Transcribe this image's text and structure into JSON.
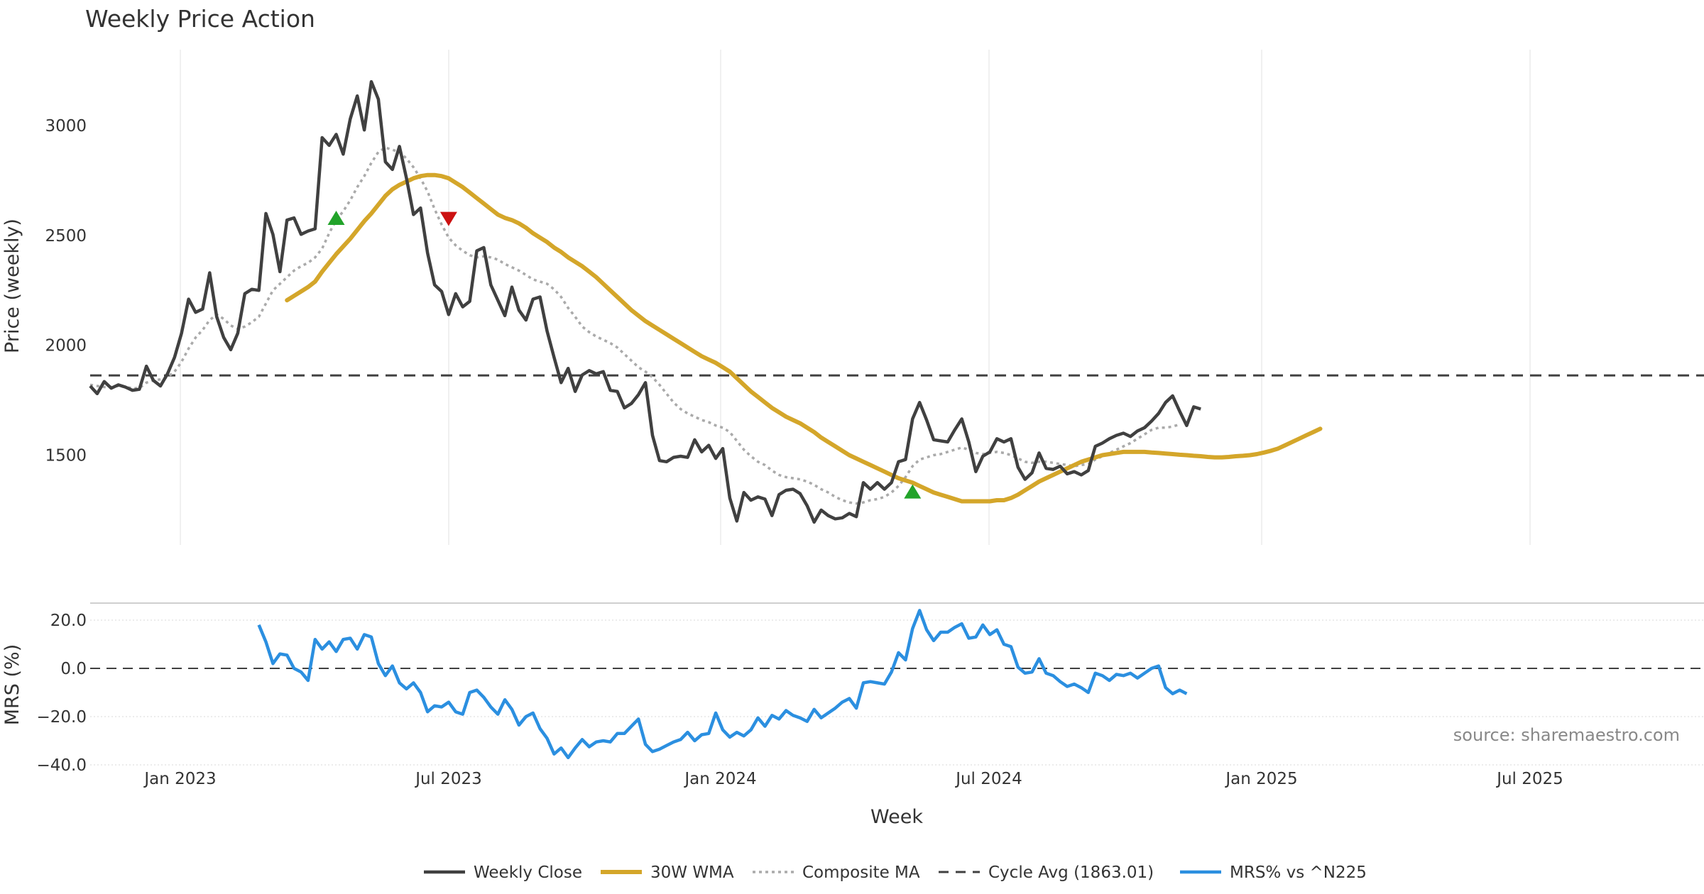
{
  "chart_data": {
    "type": "line",
    "title": "Weekly Price Action",
    "xlabel": "Week",
    "source": "source: sharemaestro.com",
    "colors": {
      "close": "#404040",
      "wma": "#d4a62a",
      "composite": "#aaaaaa",
      "cycle": "#404040",
      "mrs": "#2b8fe0",
      "buy": "#22a32a",
      "sell": "#cc1111"
    },
    "x_ticks": [
      "Jan 2023",
      "Jul 2023",
      "Jan 2024",
      "Jul 2024",
      "Jan 2025",
      "Jul 2025"
    ],
    "price_panel": {
      "ylabel": "Price (weekly)",
      "yticks": [
        "1500",
        "2000",
        "2500",
        "3000"
      ],
      "ylim": [
        1070,
        3290
      ],
      "cycle_avg": 1863.01,
      "weekly_close": [
        1815,
        1780,
        1835,
        1805,
        1820,
        1810,
        1795,
        1800,
        1905,
        1840,
        1815,
        1870,
        1945,
        2055,
        2210,
        2150,
        2165,
        2330,
        2130,
        2035,
        1980,
        2055,
        2235,
        2255,
        2250,
        2600,
        2505,
        2335,
        2570,
        2580,
        2505,
        2520,
        2530,
        2945,
        2910,
        2960,
        2870,
        3030,
        3135,
        2980,
        3200,
        3120,
        2835,
        2800,
        2905,
        2760,
        2595,
        2625,
        2420,
        2275,
        2245,
        2140,
        2235,
        2175,
        2200,
        2430,
        2445,
        2275,
        2205,
        2135,
        2265,
        2160,
        2115,
        2210,
        2220,
        2065,
        1945,
        1830,
        1895,
        1790,
        1865,
        1885,
        1870,
        1880,
        1795,
        1790,
        1715,
        1735,
        1775,
        1830,
        1590,
        1475,
        1470,
        1490,
        1495,
        1490,
        1570,
        1515,
        1545,
        1485,
        1530,
        1305,
        1200,
        1330,
        1295,
        1310,
        1300,
        1225,
        1320,
        1340,
        1345,
        1325,
        1270,
        1195,
        1250,
        1225,
        1210,
        1215,
        1235,
        1220,
        1375,
        1345,
        1375,
        1345,
        1375,
        1470,
        1480,
        1665,
        1740,
        1660,
        1570,
        1565,
        1560,
        1615,
        1665,
        1560,
        1425,
        1495,
        1515,
        1575,
        1560,
        1575,
        1445,
        1390,
        1420,
        1510,
        1440,
        1435,
        1450,
        1415,
        1425,
        1410,
        1430,
        1540,
        1555,
        1575,
        1590,
        1600,
        1585,
        1610,
        1625,
        1655,
        1690,
        1740,
        1770,
        1700,
        1635,
        1720,
        1710
      ],
      "wma_30": [
        2205,
        2225,
        2245,
        2265,
        2290,
        2335,
        2375,
        2415,
        2450,
        2485,
        2525,
        2565,
        2600,
        2640,
        2680,
        2710,
        2730,
        2745,
        2760,
        2770,
        2775,
        2775,
        2770,
        2760,
        2740,
        2720,
        2695,
        2670,
        2645,
        2620,
        2595,
        2580,
        2570,
        2555,
        2535,
        2510,
        2490,
        2470,
        2445,
        2425,
        2400,
        2380,
        2360,
        2335,
        2310,
        2280,
        2250,
        2220,
        2190,
        2160,
        2135,
        2110,
        2090,
        2070,
        2050,
        2030,
        2010,
        1990,
        1970,
        1950,
        1935,
        1920,
        1900,
        1880,
        1850,
        1820,
        1790,
        1765,
        1740,
        1715,
        1695,
        1675,
        1660,
        1645,
        1625,
        1605,
        1580,
        1560,
        1540,
        1520,
        1500,
        1485,
        1470,
        1455,
        1440,
        1425,
        1410,
        1395,
        1385,
        1375,
        1360,
        1345,
        1330,
        1320,
        1310,
        1300,
        1290,
        1290,
        1290,
        1290,
        1290,
        1295,
        1295,
        1305,
        1320,
        1340,
        1360,
        1380,
        1395,
        1410,
        1425,
        1440,
        1455,
        1470,
        1480,
        1490,
        1500,
        1505,
        1510,
        1515,
        1515,
        1515,
        1515,
        1512,
        1510,
        1507,
        1505,
        1502,
        1500,
        1497,
        1495,
        1492,
        1490,
        1490,
        1492,
        1495,
        1497,
        1500,
        1505,
        1512,
        1520,
        1530,
        1545,
        1560,
        1575,
        1590,
        1605,
        1620
      ],
      "composite_ma": [
        1820,
        1815,
        1810,
        1810,
        1815,
        1810,
        1805,
        1805,
        1830,
        1840,
        1845,
        1855,
        1880,
        1925,
        1985,
        2035,
        2070,
        2115,
        2140,
        2120,
        2090,
        2075,
        2085,
        2105,
        2130,
        2190,
        2250,
        2280,
        2310,
        2340,
        2360,
        2375,
        2400,
        2440,
        2510,
        2570,
        2610,
        2660,
        2720,
        2770,
        2830,
        2880,
        2900,
        2890,
        2880,
        2850,
        2810,
        2760,
        2700,
        2620,
        2550,
        2490,
        2455,
        2430,
        2410,
        2400,
        2405,
        2400,
        2390,
        2370,
        2355,
        2340,
        2320,
        2300,
        2290,
        2280,
        2255,
        2220,
        2170,
        2130,
        2085,
        2060,
        2040,
        2025,
        2010,
        1990,
        1960,
        1930,
        1900,
        1880,
        1855,
        1820,
        1780,
        1740,
        1710,
        1690,
        1675,
        1660,
        1650,
        1635,
        1625,
        1605,
        1565,
        1525,
        1495,
        1470,
        1455,
        1430,
        1410,
        1400,
        1395,
        1390,
        1380,
        1365,
        1345,
        1330,
        1310,
        1295,
        1285,
        1280,
        1285,
        1295,
        1300,
        1310,
        1330,
        1360,
        1400,
        1450,
        1480,
        1490,
        1500,
        1505,
        1515,
        1525,
        1535,
        1525,
        1510,
        1505,
        1510,
        1515,
        1510,
        1500,
        1485,
        1470,
        1465,
        1470,
        1470,
        1465,
        1460,
        1455,
        1450,
        1455,
        1460,
        1480,
        1495,
        1510,
        1525,
        1540,
        1555,
        1575,
        1595,
        1615,
        1625,
        1625,
        1630,
        1640
      ],
      "buy_signals": [
        [
          35,
          2580
        ],
        [
          117,
          1335
        ]
      ],
      "sell_signals": [
        [
          51,
          2575
        ]
      ]
    },
    "mrs_panel": {
      "ylabel": "MRS (%)",
      "yticks": [
        "−40.0",
        "−20.0",
        "0.0",
        "20.0"
      ],
      "ylim": [
        -40,
        27
      ],
      "mrs": [
        18,
        11,
        2,
        6,
        5.5,
        0,
        -1.5,
        -5,
        12,
        8,
        11,
        7,
        12,
        12.5,
        8,
        14,
        13,
        2,
        -3,
        1,
        -6,
        -8.5,
        -6,
        -10,
        -18,
        -15.5,
        -16,
        -14,
        -18,
        -19,
        -10,
        -9,
        -12,
        -16,
        -19,
        -13,
        -17,
        -23.5,
        -20,
        -18.5,
        -25,
        -29,
        -35.5,
        -33,
        -37,
        -33,
        -29.5,
        -32.5,
        -30.5,
        -30,
        -30.5,
        -27,
        -27,
        -24,
        -21,
        -31.5,
        -34.5,
        -33.5,
        -32,
        -30.5,
        -29.5,
        -26.5,
        -30,
        -27.5,
        -27,
        -18.5,
        -25.5,
        -28.5,
        -26.5,
        -28,
        -25.5,
        -20.5,
        -24,
        -19.5,
        -21,
        -17.5,
        -19.5,
        -20.5,
        -22,
        -17,
        -20.5,
        -18.5,
        -16.5,
        -14,
        -12.5,
        -16.5,
        -6,
        -5.5,
        -6,
        -6.5,
        -1.5,
        6.5,
        3.5,
        16.5,
        24,
        16,
        11.5,
        15,
        15,
        17,
        18.5,
        12.5,
        13,
        18,
        14,
        16,
        10,
        9,
        0.5,
        -2,
        -1.5,
        4,
        -2,
        -3,
        -5.5,
        -7.5,
        -6.5,
        -8,
        -10,
        -2,
        -3,
        -5,
        -2.5,
        -3,
        -2,
        -4,
        -2,
        0,
        1,
        -8,
        -10.5,
        -9,
        -10.5
      ]
    },
    "legend": [
      {
        "key": "close",
        "label": "Weekly Close",
        "style": "solid"
      },
      {
        "key": "wma",
        "label": "30W WMA",
        "style": "solid"
      },
      {
        "key": "composite",
        "label": "Composite MA",
        "style": "dotted"
      },
      {
        "key": "cycle",
        "label": "Cycle Avg (1863.01)",
        "style": "dashed"
      },
      {
        "key": "mrs",
        "label": "MRS% vs ^N225",
        "style": "solid"
      }
    ]
  }
}
